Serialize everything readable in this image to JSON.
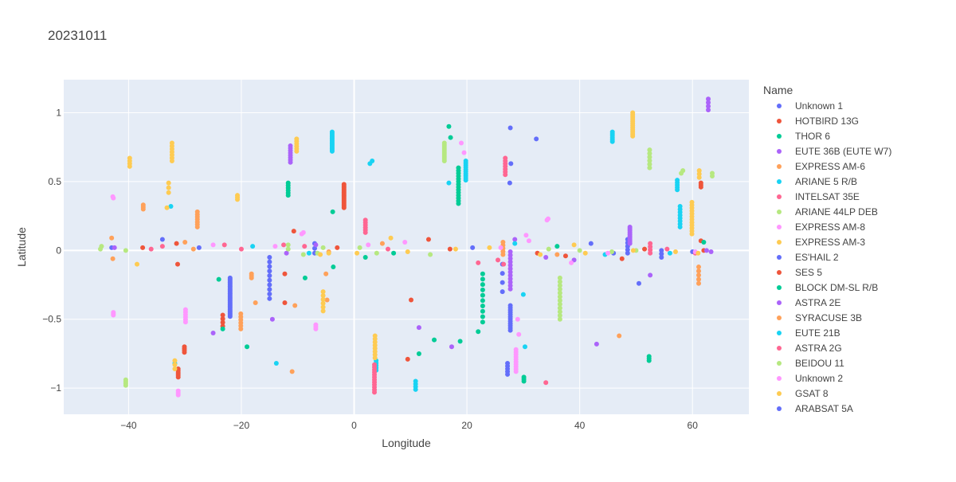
{
  "chart_data": {
    "type": "scatter",
    "title": "20231011",
    "xlabel": "Longitude",
    "ylabel": "Latitude",
    "xlim": [
      -51.5,
      70
    ],
    "ylim": [
      -1.19,
      1.24
    ],
    "x_ticks": [
      -40,
      -20,
      0,
      20,
      40,
      60
    ],
    "y_ticks": [
      -1,
      -0.5,
      0,
      0.5,
      1
    ],
    "x_tick_labels": [
      "−40",
      "−20",
      "0",
      "20",
      "40",
      "60"
    ],
    "y_tick_labels": [
      "−1",
      "−0.5",
      "0",
      "0.5",
      "1"
    ],
    "grid": true,
    "legend": {
      "title": "Name",
      "placement": "right"
    },
    "series": [
      {
        "name": "Unknown 1",
        "color": "#636efa",
        "segments": [
          [
            -22,
            -0.48,
            -0.2,
            28
          ],
          [
            -15,
            -0.35,
            -0.05,
            10
          ],
          [
            -7,
            -0.02,
            0.05,
            3
          ],
          [
            26.3,
            -0.3,
            -0.1,
            4
          ],
          [
            27.7,
            -0.58,
            -0.4,
            12
          ],
          [
            27.2,
            -0.9,
            -0.82,
            5
          ],
          [
            48.5,
            -0.02,
            0.08,
            5
          ],
          [
            54.5,
            -0.05,
            0,
            3
          ]
        ],
        "points": [
          [
            -43,
            0.02
          ],
          [
            -34,
            0.08
          ],
          [
            -27.5,
            0.02
          ],
          [
            21,
            0.02
          ],
          [
            27.7,
            0.89
          ],
          [
            27.8,
            0.63
          ],
          [
            27.6,
            0.49
          ],
          [
            32.3,
            0.81
          ],
          [
            42,
            0.05
          ],
          [
            46,
            -0.02
          ],
          [
            50.5,
            -0.24
          ],
          [
            60,
            -0.01
          ]
        ]
      },
      {
        "name": "HOTBIRD 13G",
        "color": "#ef553b",
        "segments": [
          [
            -1.8,
            0.31,
            0.48,
            16
          ],
          [
            -23.3,
            -0.55,
            -0.47,
            4
          ],
          [
            -30.1,
            -0.74,
            -0.7,
            4
          ],
          [
            -31.2,
            -0.92,
            -0.86,
            5
          ],
          [
            61.5,
            0.46,
            0.49,
            3
          ]
        ],
        "points": [
          [
            -37.5,
            0.02
          ],
          [
            -31.5,
            0.05
          ],
          [
            -31.3,
            -0.1
          ],
          [
            -12.3,
            -0.17
          ],
          [
            -12.3,
            -0.38
          ],
          [
            -10.7,
            0.14
          ],
          [
            -3,
            0.02
          ],
          [
            9.5,
            -0.79
          ],
          [
            10.1,
            -0.36
          ],
          [
            13.2,
            0.08
          ],
          [
            17,
            0.01
          ],
          [
            32.5,
            -0.02
          ],
          [
            37.5,
            -0.04
          ],
          [
            47.5,
            -0.06
          ],
          [
            51.5,
            0.01
          ],
          [
            61.5,
            0.07
          ],
          [
            62,
            0
          ]
        ]
      },
      {
        "name": "THOR 6",
        "color": "#00cc96",
        "segments": [
          [
            -11.7,
            0.4,
            0.49,
            6
          ],
          [
            18.5,
            0.34,
            0.6,
            14
          ],
          [
            22.8,
            -0.52,
            -0.17,
            10
          ],
          [
            30.1,
            -0.95,
            -0.92,
            3
          ],
          [
            52.3,
            -0.8,
            -0.77,
            3
          ]
        ],
        "points": [
          [
            -24,
            -0.21
          ],
          [
            -23.3,
            -0.57
          ],
          [
            -19,
            -0.7
          ],
          [
            -8.7,
            -0.2
          ],
          [
            -3.8,
            0.28
          ],
          [
            -3.7,
            -0.12
          ],
          [
            2,
            -0.05
          ],
          [
            7,
            -0.02
          ],
          [
            11.5,
            -0.75
          ],
          [
            14.2,
            -0.65
          ],
          [
            16.8,
            0.9
          ],
          [
            17.1,
            0.82
          ],
          [
            18.8,
            -0.66
          ],
          [
            22,
            -0.59
          ],
          [
            36,
            0.03
          ],
          [
            62,
            0.06
          ]
        ]
      },
      {
        "name": "EUTE 36B (EUTE W7)",
        "color": "#ab63fa",
        "segments": [
          [
            -11.3,
            0.64,
            0.76,
            8
          ],
          [
            27.7,
            -0.28,
            -0.01,
            12
          ],
          [
            48.9,
            0.05,
            0.17,
            10
          ],
          [
            62.8,
            1.02,
            1.1,
            4
          ]
        ],
        "points": [
          [
            -42.5,
            0.02
          ],
          [
            -25,
            -0.6
          ],
          [
            -14.5,
            -0.5
          ],
          [
            -12,
            -0.02
          ],
          [
            -6.8,
            0.04
          ],
          [
            11.5,
            -0.56
          ],
          [
            17.3,
            -0.7
          ],
          [
            28.5,
            0.08
          ],
          [
            34,
            -0.05
          ],
          [
            39,
            -0.07
          ],
          [
            43,
            -0.68
          ],
          [
            52.5,
            -0.18
          ],
          [
            62.5,
            0
          ],
          [
            63.3,
            -0.01
          ]
        ]
      },
      {
        "name": "EXPRESS AM-6",
        "color": "#ffa15a",
        "segments": [
          [
            -27.8,
            0.17,
            0.28,
            7
          ],
          [
            -37.4,
            0.3,
            0.33,
            3
          ],
          [
            -20.1,
            -0.57,
            -0.46,
            6
          ],
          [
            -18.2,
            -0.2,
            -0.17,
            3
          ],
          [
            26.4,
            -0.03,
            0.06,
            5
          ],
          [
            61.1,
            -0.24,
            -0.12,
            5
          ]
        ],
        "points": [
          [
            -43,
            0.09
          ],
          [
            -42.8,
            -0.06
          ],
          [
            -30,
            0.06
          ],
          [
            -28.5,
            0.01
          ],
          [
            -17.5,
            -0.38
          ],
          [
            -11,
            -0.88
          ],
          [
            -10.5,
            -0.4
          ],
          [
            -5,
            -0.17
          ],
          [
            -4.8,
            -0.36
          ],
          [
            -4.5,
            -0.01
          ],
          [
            5,
            0.05
          ],
          [
            36,
            -0.03
          ],
          [
            47,
            -0.62
          ]
        ]
      },
      {
        "name": "ARIANE 5 R/B",
        "color": "#19d3f3",
        "segments": [
          [
            -3.9,
            0.72,
            0.86,
            14
          ],
          [
            19.8,
            0.51,
            0.65,
            10
          ],
          [
            45.8,
            0.79,
            0.86,
            6
          ],
          [
            57.3,
            0.44,
            0.51,
            5
          ],
          [
            57.8,
            0.17,
            0.32,
            8
          ],
          [
            3.9,
            -0.87,
            -0.8,
            5
          ],
          [
            10.9,
            -1.01,
            -0.95,
            4
          ]
        ],
        "points": [
          [
            -32.5,
            0.32
          ],
          [
            -31.8,
            -0.82
          ],
          [
            -18,
            0.03
          ],
          [
            -13.8,
            -0.82
          ],
          [
            -8,
            -0.02
          ],
          [
            2.8,
            0.63
          ],
          [
            3.2,
            0.65
          ],
          [
            16.8,
            0.49
          ],
          [
            28.5,
            0.05
          ],
          [
            30,
            -0.32
          ],
          [
            30.3,
            -0.7
          ],
          [
            44.5,
            -0.03
          ],
          [
            56,
            -0.02
          ]
        ]
      },
      {
        "name": "INTELSAT 35E",
        "color": "#ff6692",
        "segments": [
          [
            2,
            0.13,
            0.22,
            6
          ],
          [
            3.6,
            -1.03,
            -0.83,
            12
          ],
          [
            26.8,
            0.55,
            0.67,
            7
          ],
          [
            52.5,
            -0.02,
            0.05,
            4
          ]
        ],
        "points": [
          [
            -36,
            0.01
          ],
          [
            -34,
            0.03
          ],
          [
            -23,
            0.04
          ],
          [
            -20,
            0.01
          ],
          [
            -12.5,
            0.04
          ],
          [
            -8.8,
            0.03
          ],
          [
            6,
            0.01
          ],
          [
            22,
            -0.09
          ],
          [
            25.5,
            -0.07
          ],
          [
            26.5,
            -0.1
          ],
          [
            34,
            -0.96
          ],
          [
            55.5,
            0.01
          ],
          [
            60.5,
            -0.02
          ]
        ]
      },
      {
        "name": "ARIANE 44LP DEB",
        "color": "#b6e880",
        "segments": [
          [
            16,
            0.65,
            0.78,
            10
          ],
          [
            36.5,
            -0.5,
            -0.2,
            12
          ],
          [
            52.4,
            0.6,
            0.73,
            6
          ],
          [
            40.5,
            -0.97,
            -0.93,
            0
          ],
          [
            -40.5,
            -0.98,
            -0.94,
            4
          ],
          [
            -11.7,
            0.01,
            0.04,
            2
          ]
        ],
        "points": [
          [
            -45,
            0.01
          ],
          [
            -44.8,
            0.03
          ],
          [
            -40.5,
            0
          ],
          [
            -9,
            -0.03
          ],
          [
            -6.5,
            -0.02
          ],
          [
            -5.5,
            0.02
          ],
          [
            1,
            0.02
          ],
          [
            4,
            -0.02
          ],
          [
            13.5,
            -0.03
          ],
          [
            34.5,
            0.01
          ],
          [
            40,
            0
          ],
          [
            45.7,
            -0.01
          ],
          [
            50,
            0
          ],
          [
            58,
            0.56
          ],
          [
            58.3,
            0.58
          ],
          [
            63.5,
            0.54
          ],
          [
            63.5,
            0.56
          ]
        ]
      },
      {
        "name": "EXPRESS AM-8",
        "color": "#ff97ff",
        "segments": [
          [
            -29.9,
            -0.52,
            -0.43,
            6
          ],
          [
            28.7,
            -0.88,
            -0.72,
            10
          ],
          [
            -31.2,
            -1.05,
            -1.02,
            3
          ],
          [
            -42.7,
            -0.47,
            -0.45,
            3
          ],
          [
            -6.8,
            -0.57,
            -0.54,
            3
          ]
        ],
        "points": [
          [
            -42.7,
            0.38
          ],
          [
            -42.8,
            0.39
          ],
          [
            -25,
            0.04
          ],
          [
            -14,
            0.03
          ],
          [
            -9.3,
            0.12
          ],
          [
            -9,
            0.13
          ],
          [
            2.5,
            0.04
          ],
          [
            9,
            0.06
          ],
          [
            19,
            0.78
          ],
          [
            19.5,
            0.71
          ],
          [
            26,
            0.02
          ],
          [
            29,
            -0.5
          ],
          [
            29.2,
            -0.61
          ],
          [
            30.5,
            0.11
          ],
          [
            31,
            0.07
          ],
          [
            34.2,
            0.22
          ],
          [
            34.4,
            0.23
          ],
          [
            38.5,
            -0.09
          ],
          [
            45,
            -0.02
          ],
          [
            60.5,
            -0.01
          ]
        ]
      },
      {
        "name": "EXPRESS AM-3",
        "color": "#fecb52",
        "segments": [
          [
            -39.8,
            0.61,
            0.67,
            4
          ],
          [
            -32.3,
            0.65,
            0.78,
            7
          ],
          [
            -32.9,
            0.42,
            0.49,
            3
          ],
          [
            -10.2,
            0.72,
            0.81,
            6
          ],
          [
            -20.7,
            0.37,
            0.4,
            3
          ],
          [
            -5.5,
            -0.44,
            -0.3,
            6
          ],
          [
            3.7,
            -0.78,
            -0.62,
            8
          ],
          [
            49.4,
            0.83,
            1,
            12
          ],
          [
            59.9,
            0.12,
            0.35,
            12
          ],
          [
            61.2,
            0.53,
            0.58,
            3
          ],
          [
            -31.8,
            -0.86,
            -0.8,
            3
          ]
        ],
        "points": [
          [
            -38.5,
            -0.1
          ],
          [
            -33.2,
            0.31
          ],
          [
            -6,
            -0.03
          ],
          [
            -4.5,
            -0.02
          ],
          [
            0.5,
            -0.02
          ],
          [
            6.5,
            0.09
          ],
          [
            9.5,
            -0.01
          ],
          [
            18,
            0.01
          ],
          [
            24,
            0.02
          ],
          [
            33,
            -0.03
          ],
          [
            39,
            0.04
          ],
          [
            41,
            -0.02
          ],
          [
            49.5,
            0
          ],
          [
            57,
            -0.01
          ],
          [
            61,
            -0.02
          ]
        ]
      },
      {
        "name": "ES'HAIL 2",
        "color": "#636efa",
        "segments": [],
        "points": []
      },
      {
        "name": "SES 5",
        "color": "#ef553b",
        "segments": [],
        "points": []
      },
      {
        "name": "BLOCK DM-SL R/B",
        "color": "#00cc96",
        "segments": [],
        "points": []
      },
      {
        "name": "ASTRA 2E",
        "color": "#ab63fa",
        "segments": [],
        "points": []
      },
      {
        "name": "SYRACUSE 3B",
        "color": "#ffa15a",
        "segments": [],
        "points": []
      },
      {
        "name": "EUTE 21B",
        "color": "#19d3f3",
        "segments": [],
        "points": []
      },
      {
        "name": "ASTRA 2G",
        "color": "#ff6692",
        "segments": [],
        "points": []
      },
      {
        "name": "BEIDOU 11",
        "color": "#b6e880",
        "segments": [],
        "points": []
      },
      {
        "name": "Unknown 2",
        "color": "#ff97ff",
        "segments": [],
        "points": []
      },
      {
        "name": "GSAT 8",
        "color": "#fecb52",
        "segments": [],
        "points": []
      },
      {
        "name": "ARABSAT 5A",
        "color": "#636efa",
        "segments": [],
        "points": []
      }
    ]
  }
}
